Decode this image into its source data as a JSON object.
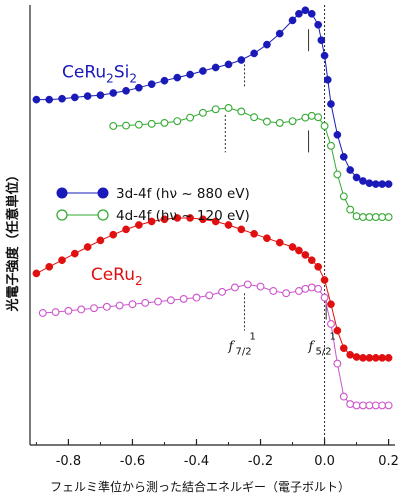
{
  "chart_data": {
    "type": "scatter",
    "xlabel": "フェルミ準位から測った結合エネルギー（電子ボルト）",
    "ylabel": "光電子強度（任意単位）",
    "xlim": [
      -0.92,
      0.22
    ],
    "ylim": [
      0,
      100
    ],
    "x_ticks": [
      -0.8,
      -0.6,
      -0.4,
      -0.2,
      0.0,
      0.2
    ],
    "x_tick_labels": [
      "-0.8",
      "-0.6",
      "-0.4",
      "-0.2",
      "0.0",
      "0.2"
    ],
    "fermi_level_line": 0.0,
    "grid": false,
    "legend_position": "middle-left",
    "sample_labels": [
      {
        "text": "CeRu₂Si₂",
        "x": -0.82,
        "y": 83.5,
        "color": "#1a1ab8"
      },
      {
        "text": "CeRu₂",
        "x": -0.73,
        "y": 37.5,
        "color": "#e01010"
      }
    ],
    "legend": [
      {
        "label": "3d-4f (hν ~ 880 eV)",
        "color": "#1a1ab8",
        "filled": true
      },
      {
        "label": "4d-4f (hν ~ 120 eV)",
        "color": "#33aa33",
        "filled": false
      }
    ],
    "annotations": [
      {
        "label": "f",
        "sub": "7/2",
        "sup": "1",
        "x": -0.3,
        "y": 21.5
      },
      {
        "label": "f",
        "sub": "5/2",
        "sup": "1",
        "x": -0.05,
        "y": 21.5
      }
    ],
    "series": [
      {
        "name": "3d-4f (hν ~ 880 eV)",
        "sample": "CeRu₂Si₂",
        "color": "#1a1ab8",
        "filled": true,
        "x": [
          -0.9,
          -0.86,
          -0.82,
          -0.78,
          -0.74,
          -0.7,
          -0.66,
          -0.62,
          -0.58,
          -0.54,
          -0.5,
          -0.46,
          -0.42,
          -0.38,
          -0.34,
          -0.3,
          -0.26,
          -0.22,
          -0.18,
          -0.14,
          -0.1,
          -0.08,
          -0.06,
          -0.04,
          -0.02,
          -0.01,
          0.0,
          0.01,
          0.02,
          0.04,
          0.06,
          0.08,
          0.1,
          0.12,
          0.14,
          0.16,
          0.18,
          0.2
        ],
        "y": [
          78.5,
          78.5,
          78.7,
          79.0,
          79.3,
          79.5,
          80.0,
          80.5,
          81.2,
          82.0,
          82.8,
          83.5,
          84.2,
          85.0,
          85.8,
          86.5,
          87.5,
          89.0,
          91.0,
          93.5,
          96.5,
          98.0,
          98.8,
          98.0,
          95.5,
          92.0,
          88.5,
          83.0,
          77.5,
          70.5,
          65.5,
          62.5,
          60.8,
          60.0,
          59.5,
          59.3,
          59.3,
          59.3
        ]
      },
      {
        "name": "4d-4f (hν ~ 120 eV)",
        "sample": "CeRu₂Si₂",
        "color": "#33aa33",
        "filled": false,
        "x": [
          -0.66,
          -0.62,
          -0.58,
          -0.54,
          -0.5,
          -0.46,
          -0.42,
          -0.38,
          -0.34,
          -0.3,
          -0.26,
          -0.22,
          -0.18,
          -0.14,
          -0.1,
          -0.06,
          -0.04,
          -0.02,
          0.0,
          0.02,
          0.04,
          0.06,
          0.08,
          0.1,
          0.12,
          0.14,
          0.16,
          0.18,
          0.2
        ],
        "y": [
          72.5,
          72.6,
          72.8,
          73.0,
          73.2,
          73.6,
          74.4,
          75.5,
          76.3,
          76.6,
          75.8,
          74.5,
          73.5,
          73.2,
          73.6,
          74.4,
          74.8,
          74.5,
          72.5,
          68.0,
          61.5,
          56.5,
          53.5,
          52.0,
          51.8,
          51.8,
          51.8,
          51.8,
          51.8
        ]
      },
      {
        "name": "3d-4f (hν ~ 880 eV)",
        "sample": "CeRu₂",
        "color": "#e01010",
        "filled": true,
        "x": [
          -0.9,
          -0.86,
          -0.82,
          -0.78,
          -0.74,
          -0.7,
          -0.66,
          -0.62,
          -0.58,
          -0.54,
          -0.5,
          -0.46,
          -0.42,
          -0.38,
          -0.34,
          -0.3,
          -0.26,
          -0.22,
          -0.18,
          -0.14,
          -0.1,
          -0.08,
          -0.06,
          -0.04,
          -0.02,
          0.0,
          0.02,
          0.04,
          0.06,
          0.08,
          0.1,
          0.12,
          0.14,
          0.16,
          0.18,
          0.2
        ],
        "y": [
          39.0,
          40.5,
          42.0,
          43.5,
          45.0,
          46.5,
          47.8,
          49.0,
          50.0,
          50.8,
          51.3,
          51.6,
          51.6,
          51.3,
          50.8,
          50.0,
          49.0,
          48.0,
          47.0,
          46.0,
          45.0,
          44.2,
          43.2,
          42.0,
          40.5,
          37.5,
          32.0,
          26.0,
          22.0,
          20.5,
          20.0,
          19.8,
          19.8,
          19.8,
          19.8,
          19.8
        ]
      },
      {
        "name": "4d-4f (hν ~ 120 eV)",
        "sample": "CeRu₂",
        "color": "#cc55cc",
        "filled": false,
        "x": [
          -0.88,
          -0.84,
          -0.8,
          -0.76,
          -0.72,
          -0.68,
          -0.64,
          -0.6,
          -0.56,
          -0.52,
          -0.48,
          -0.44,
          -0.4,
          -0.36,
          -0.32,
          -0.28,
          -0.24,
          -0.2,
          -0.16,
          -0.12,
          -0.08,
          -0.06,
          -0.04,
          -0.02,
          0.0,
          0.02,
          0.04,
          0.06,
          0.08,
          0.1,
          0.12,
          0.14,
          0.16,
          0.18,
          0.2
        ],
        "y": [
          30.0,
          30.2,
          30.5,
          30.8,
          31.1,
          31.4,
          31.7,
          32.0,
          32.3,
          32.6,
          32.9,
          33.2,
          33.5,
          34.0,
          34.8,
          35.8,
          36.5,
          36.0,
          35.0,
          34.5,
          35.0,
          35.5,
          35.8,
          35.5,
          33.5,
          27.5,
          18.5,
          11.0,
          9.3,
          9.0,
          9.0,
          9.0,
          9.0,
          9.0,
          9.0
        ]
      }
    ]
  }
}
